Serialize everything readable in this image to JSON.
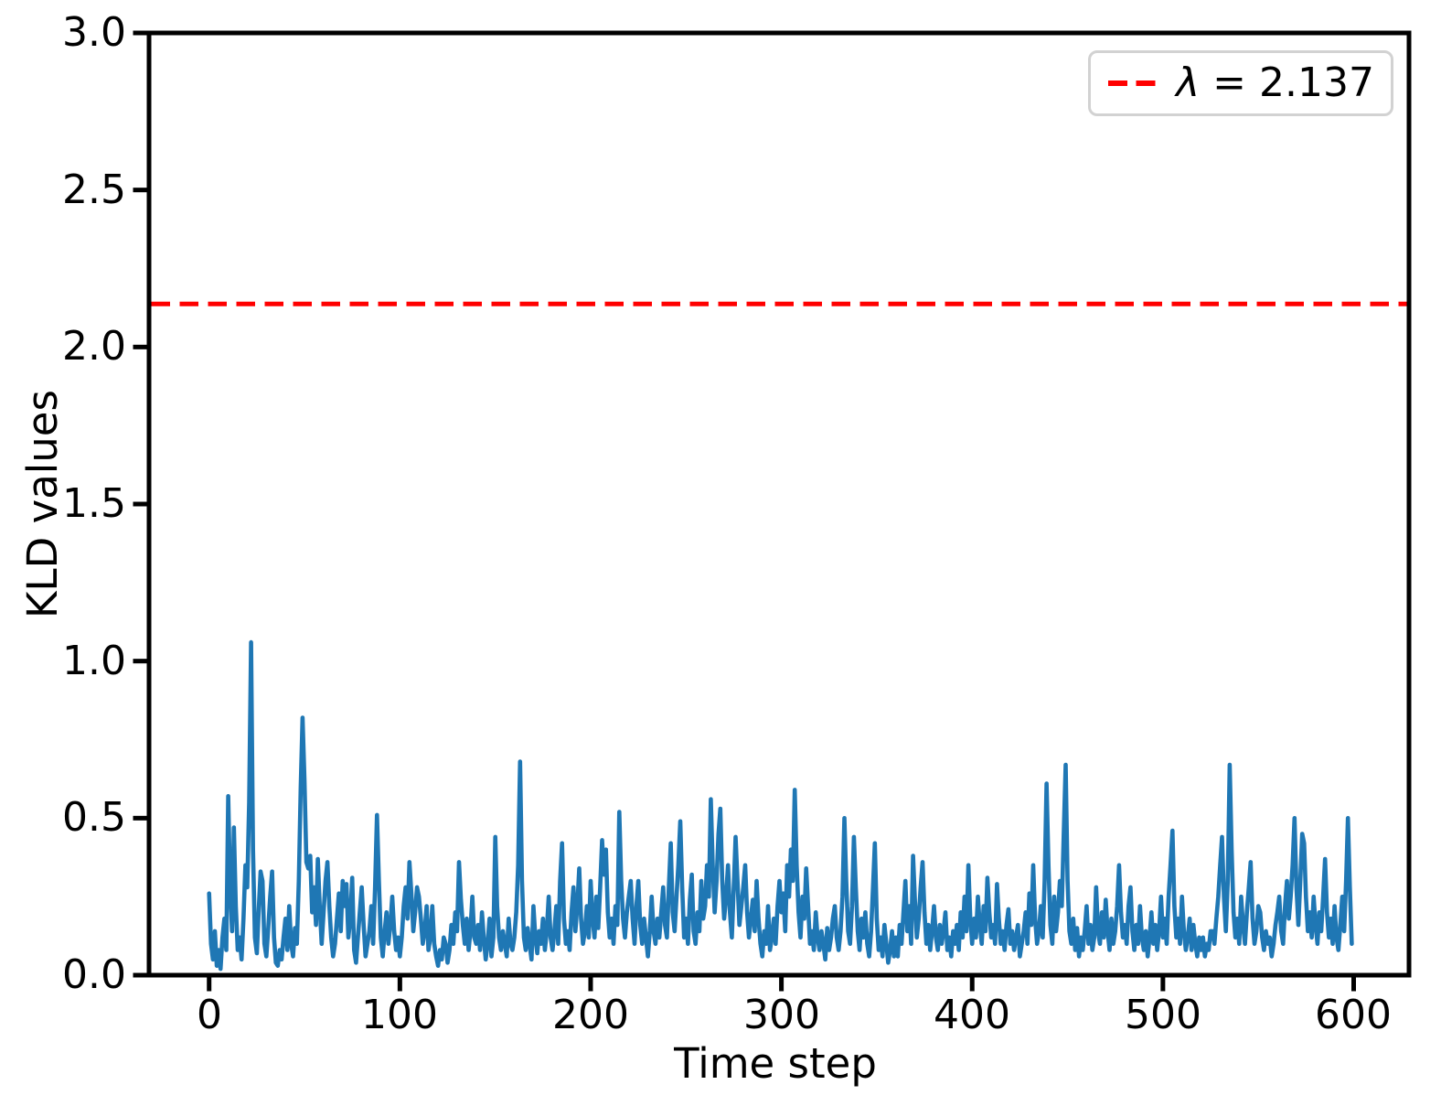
{
  "figure": {
    "description": "Line plot of KLD values per time step with dashed threshold line"
  },
  "colors": {
    "series": "#1f77b4",
    "threshold": "#ff0000",
    "axis": "#000000",
    "legend_border": "#d2d2d2",
    "background": "#ffffff"
  },
  "legend": {
    "label": "λ = 2.137"
  },
  "axes": {
    "xlabel": "Time step",
    "ylabel": "KLD values",
    "x_tick_labels": [
      "0",
      "100",
      "200",
      "300",
      "400",
      "500",
      "600"
    ],
    "y_tick_labels": [
      "0.0",
      "0.5",
      "1.0",
      "1.5",
      "2.0",
      "2.5",
      "3.0"
    ]
  },
  "chart_data": {
    "type": "line",
    "xlabel": "Time step",
    "ylabel": "KLD values",
    "xlim": [
      -31.5,
      629
    ],
    "ylim": [
      0,
      3.0
    ],
    "x_ticks": [
      0,
      100,
      200,
      300,
      400,
      500,
      600
    ],
    "y_ticks": [
      0,
      0.5,
      1.0,
      1.5,
      2.0,
      2.5,
      3.0
    ],
    "grid": false,
    "legend_position": "upper right",
    "threshold": {
      "label": "λ = 2.137",
      "value": 2.137,
      "style": "dashed",
      "color": "#ff0000"
    },
    "series": [
      {
        "name": "KLD values",
        "color": "#1f77b4",
        "x_start": 0,
        "x_step": 1,
        "values": [
          0.26,
          0.1,
          0.05,
          0.14,
          0.03,
          0.08,
          0.02,
          0.12,
          0.18,
          0.08,
          0.57,
          0.28,
          0.14,
          0.47,
          0.22,
          0.08,
          0.12,
          0.05,
          0.18,
          0.35,
          0.28,
          0.55,
          1.06,
          0.4,
          0.12,
          0.07,
          0.21,
          0.33,
          0.3,
          0.1,
          0.06,
          0.15,
          0.25,
          0.33,
          0.12,
          0.04,
          0.03,
          0.08,
          0.05,
          0.12,
          0.18,
          0.08,
          0.22,
          0.1,
          0.06,
          0.15,
          0.1,
          0.3,
          0.6,
          0.82,
          0.62,
          0.36,
          0.34,
          0.38,
          0.2,
          0.28,
          0.16,
          0.37,
          0.22,
          0.1,
          0.2,
          0.3,
          0.36,
          0.22,
          0.12,
          0.06,
          0.1,
          0.18,
          0.26,
          0.14,
          0.3,
          0.22,
          0.29,
          0.12,
          0.18,
          0.31,
          0.08,
          0.04,
          0.12,
          0.2,
          0.28,
          0.16,
          0.06,
          0.1,
          0.14,
          0.22,
          0.1,
          0.28,
          0.51,
          0.3,
          0.12,
          0.06,
          0.14,
          0.2,
          0.1,
          0.16,
          0.25,
          0.14,
          0.08,
          0.12,
          0.06,
          0.12,
          0.22,
          0.28,
          0.18,
          0.36,
          0.26,
          0.14,
          0.2,
          0.28,
          0.25,
          0.18,
          0.1,
          0.14,
          0.22,
          0.08,
          0.12,
          0.22,
          0.1,
          0.06,
          0.03,
          0.08,
          0.05,
          0.12,
          0.1,
          0.04,
          0.08,
          0.16,
          0.1,
          0.2,
          0.14,
          0.36,
          0.24,
          0.16,
          0.1,
          0.18,
          0.08,
          0.14,
          0.25,
          0.12,
          0.1,
          0.16,
          0.08,
          0.2,
          0.12,
          0.05,
          0.1,
          0.18,
          0.06,
          0.12,
          0.44,
          0.22,
          0.12,
          0.08,
          0.14,
          0.1,
          0.06,
          0.18,
          0.1,
          0.08,
          0.12,
          0.2,
          0.35,
          0.68,
          0.3,
          0.12,
          0.08,
          0.15,
          0.1,
          0.05,
          0.22,
          0.12,
          0.07,
          0.14,
          0.1,
          0.18,
          0.08,
          0.14,
          0.25,
          0.12,
          0.08,
          0.14,
          0.22,
          0.1,
          0.3,
          0.42,
          0.18,
          0.1,
          0.14,
          0.08,
          0.2,
          0.28,
          0.14,
          0.22,
          0.34,
          0.18,
          0.1,
          0.14,
          0.22,
          0.12,
          0.3,
          0.18,
          0.12,
          0.25,
          0.15,
          0.28,
          0.43,
          0.32,
          0.4,
          0.2,
          0.12,
          0.18,
          0.1,
          0.22,
          0.16,
          0.52,
          0.3,
          0.18,
          0.12,
          0.2,
          0.25,
          0.3,
          0.18,
          0.1,
          0.22,
          0.3,
          0.16,
          0.1,
          0.18,
          0.12,
          0.06,
          0.14,
          0.25,
          0.14,
          0.1,
          0.18,
          0.12,
          0.2,
          0.28,
          0.16,
          0.12,
          0.28,
          0.42,
          0.2,
          0.14,
          0.25,
          0.35,
          0.49,
          0.28,
          0.12,
          0.18,
          0.1,
          0.24,
          0.32,
          0.14,
          0.1,
          0.2,
          0.14,
          0.3,
          0.18,
          0.22,
          0.35,
          0.25,
          0.56,
          0.35,
          0.2,
          0.3,
          0.45,
          0.53,
          0.3,
          0.18,
          0.25,
          0.35,
          0.2,
          0.12,
          0.28,
          0.44,
          0.3,
          0.16,
          0.22,
          0.28,
          0.35,
          0.2,
          0.12,
          0.18,
          0.24,
          0.14,
          0.3,
          0.18,
          0.1,
          0.06,
          0.14,
          0.1,
          0.22,
          0.08,
          0.12,
          0.18,
          0.1,
          0.22,
          0.3,
          0.2,
          0.26,
          0.14,
          0.35,
          0.25,
          0.4,
          0.3,
          0.59,
          0.35,
          0.2,
          0.12,
          0.25,
          0.18,
          0.34,
          0.22,
          0.1,
          0.14,
          0.08,
          0.2,
          0.12,
          0.08,
          0.14,
          0.1,
          0.05,
          0.15,
          0.08,
          0.12,
          0.18,
          0.22,
          0.12,
          0.08,
          0.14,
          0.25,
          0.5,
          0.3,
          0.14,
          0.1,
          0.22,
          0.44,
          0.28,
          0.14,
          0.08,
          0.18,
          0.12,
          0.2,
          0.1,
          0.06,
          0.14,
          0.28,
          0.42,
          0.18,
          0.08,
          0.12,
          0.06,
          0.16,
          0.1,
          0.04,
          0.08,
          0.14,
          0.06,
          0.12,
          0.06,
          0.16,
          0.1,
          0.2,
          0.3,
          0.14,
          0.22,
          0.1,
          0.38,
          0.24,
          0.12,
          0.18,
          0.28,
          0.36,
          0.2,
          0.1,
          0.16,
          0.08,
          0.14,
          0.22,
          0.12,
          0.08,
          0.16,
          0.1,
          0.14,
          0.2,
          0.08,
          0.12,
          0.06,
          0.14,
          0.1,
          0.16,
          0.08,
          0.2,
          0.12,
          0.25,
          0.14,
          0.35,
          0.18,
          0.1,
          0.18,
          0.12,
          0.25,
          0.16,
          0.1,
          0.22,
          0.14,
          0.31,
          0.2,
          0.12,
          0.16,
          0.1,
          0.29,
          0.18,
          0.1,
          0.14,
          0.08,
          0.16,
          0.21,
          0.1,
          0.14,
          0.08,
          0.12,
          0.16,
          0.06,
          0.1,
          0.14,
          0.2,
          0.1,
          0.26,
          0.16,
          0.35,
          0.18,
          0.1,
          0.14,
          0.22,
          0.12,
          0.3,
          0.61,
          0.35,
          0.16,
          0.1,
          0.25,
          0.14,
          0.2,
          0.3,
          0.22,
          0.45,
          0.67,
          0.3,
          0.14,
          0.1,
          0.18,
          0.08,
          0.15,
          0.06,
          0.12,
          0.08,
          0.14,
          0.22,
          0.1,
          0.16,
          0.08,
          0.12,
          0.28,
          0.14,
          0.1,
          0.2,
          0.12,
          0.24,
          0.14,
          0.08,
          0.18,
          0.1,
          0.14,
          0.22,
          0.35,
          0.2,
          0.12,
          0.16,
          0.1,
          0.22,
          0.28,
          0.14,
          0.08,
          0.16,
          0.1,
          0.22,
          0.12,
          0.08,
          0.14,
          0.06,
          0.12,
          0.2,
          0.1,
          0.16,
          0.08,
          0.14,
          0.25,
          0.12,
          0.18,
          0.1,
          0.25,
          0.35,
          0.46,
          0.22,
          0.12,
          0.18,
          0.1,
          0.25,
          0.14,
          0.08,
          0.12,
          0.18,
          0.08,
          0.16,
          0.1,
          0.06,
          0.12,
          0.08,
          0.12,
          0.06,
          0.1,
          0.08,
          0.14,
          0.14,
          0.1,
          0.18,
          0.25,
          0.35,
          0.44,
          0.25,
          0.14,
          0.3,
          0.67,
          0.4,
          0.2,
          0.12,
          0.18,
          0.1,
          0.25,
          0.16,
          0.1,
          0.2,
          0.28,
          0.36,
          0.18,
          0.1,
          0.14,
          0.22,
          0.2,
          0.12,
          0.08,
          0.14,
          0.1,
          0.12,
          0.06,
          0.1,
          0.16,
          0.2,
          0.25,
          0.14,
          0.1,
          0.22,
          0.3,
          0.18,
          0.25,
          0.35,
          0.5,
          0.28,
          0.16,
          0.3,
          0.45,
          0.42,
          0.25,
          0.14,
          0.2,
          0.12,
          0.25,
          0.16,
          0.1,
          0.2,
          0.14,
          0.25,
          0.37,
          0.2,
          0.12,
          0.18,
          0.1,
          0.22,
          0.12,
          0.08,
          0.16,
          0.25,
          0.14,
          0.3,
          0.5,
          0.28,
          0.1
        ]
      }
    ]
  }
}
